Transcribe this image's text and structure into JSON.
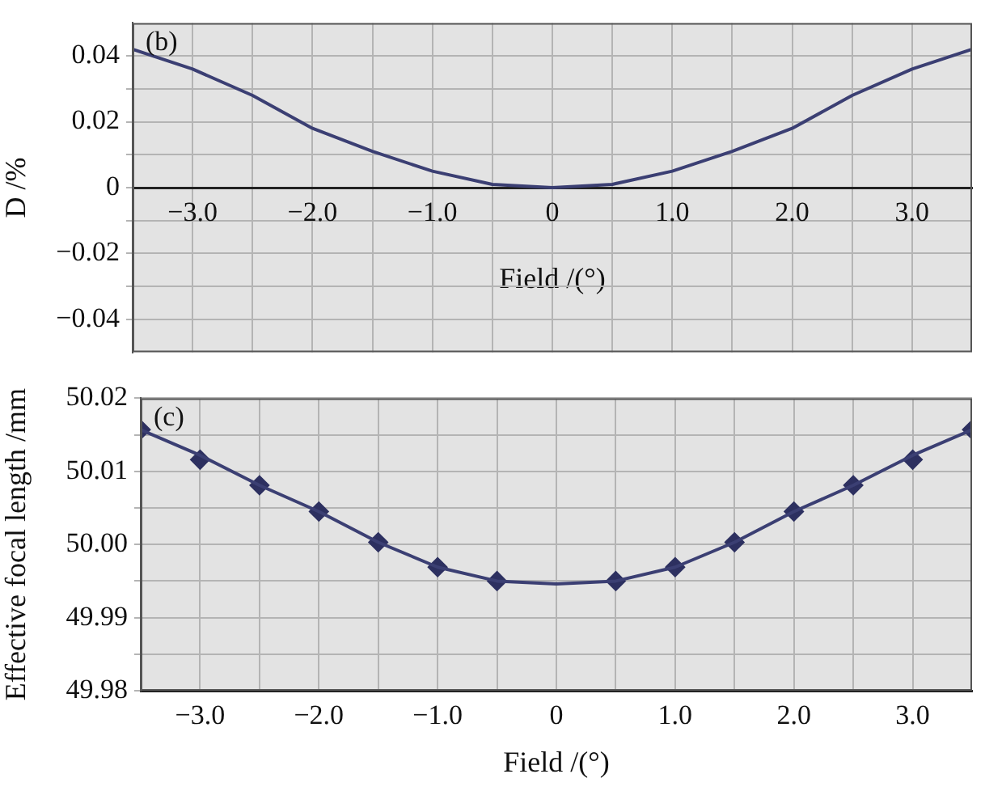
{
  "chart_data": [
    {
      "type": "line",
      "xlabel": "Field /(°)",
      "ylabel": "D /%",
      "annotations": [
        "(b)"
      ],
      "grid": true,
      "marker": "none",
      "x": [
        -3.5,
        -3,
        -2.5,
        -2,
        -1.5,
        -1,
        -0.5,
        0,
        0.5,
        1,
        1.5,
        2,
        2.5,
        3,
        3.5
      ],
      "series": [
        {
          "color": "#3b3f73",
          "values": [
            0.042,
            0.036,
            0.028,
            0.018,
            0.011,
            0.005,
            0.001,
            0,
            0.001,
            0.005,
            0.011,
            0.018,
            0.028,
            0.036,
            0.042
          ]
        }
      ],
      "xlim": [
        -3.5,
        3.5
      ],
      "ylim": [
        -0.05,
        0.05
      ],
      "xticks": [
        {
          "value": -3,
          "label": "−3.0"
        },
        {
          "value": -2.5,
          "label": null
        },
        {
          "value": -2,
          "label": "−2.0"
        },
        {
          "value": -1.5,
          "label": null
        },
        {
          "value": -1,
          "label": "−1.0"
        },
        {
          "value": -0.5,
          "label": null
        },
        0,
        {
          "value": 0.5,
          "label": null
        },
        {
          "value": 1,
          "label": "1.0"
        },
        {
          "value": 1.5,
          "label": null
        },
        {
          "value": 2,
          "label": "2.0"
        },
        {
          "value": 2.5,
          "label": null
        },
        {
          "value": 3,
          "label": "3.0"
        }
      ],
      "yticks": [
        {
          "value": -0.04,
          "label": "−0.04"
        },
        {
          "value": -0.03,
          "label": null
        },
        {
          "value": -0.02,
          "label": "−0.02"
        },
        {
          "value": -0.01,
          "label": null
        },
        0,
        {
          "value": 0.01,
          "label": null
        },
        0.02,
        {
          "value": 0.03,
          "label": null
        },
        0.04
      ]
    },
    {
      "type": "line",
      "xlabel": "Field /(°)",
      "ylabel": "Effective focal length /mm",
      "annotations": [
        "(c)"
      ],
      "grid": true,
      "series": [
        {
          "color": "#3b3f73",
          "marker": "none",
          "x": [
            -3.5,
            -3,
            -2.5,
            -2,
            -1.5,
            -1,
            -0.5,
            0,
            0.5,
            1,
            1.5,
            2,
            2.5,
            3,
            3.5
          ],
          "values": [
            50.0157,
            50.0122,
            50.0081,
            50.0045,
            50.0003,
            49.9969,
            49.995,
            49.9946,
            49.995,
            49.9969,
            50.0003,
            50.0045,
            50.0081,
            50.0122,
            50.0157
          ]
        },
        {
          "type": "scatter",
          "color": "#2d3060",
          "marker": "diamond",
          "x": [
            -3.5,
            -3,
            -2.5,
            -2,
            -1.5,
            -1,
            -0.5,
            0.5,
            1,
            1.5,
            2,
            2.5,
            3,
            3.5
          ],
          "values": [
            50.0157,
            50.0116,
            50.0081,
            50.0045,
            50.0003,
            49.9969,
            49.995,
            49.995,
            49.9969,
            50.0003,
            50.0045,
            50.0081,
            50.0116,
            50.0157
          ]
        }
      ],
      "xlim": [
        -3.5,
        3.5
      ],
      "ylim": [
        49.98,
        50.02
      ],
      "xticks": [
        {
          "value": -3,
          "label": "−3.0"
        },
        {
          "value": -2.5,
          "label": null
        },
        {
          "value": -2,
          "label": "−2.0"
        },
        {
          "value": -1.5,
          "label": null
        },
        {
          "value": -1,
          "label": "−1.0"
        },
        {
          "value": -0.5,
          "label": null
        },
        0,
        {
          "value": 0.5,
          "label": null
        },
        {
          "value": 1,
          "label": "1.0"
        },
        {
          "value": 1.5,
          "label": null
        },
        {
          "value": 2,
          "label": "2.0"
        },
        {
          "value": 2.5,
          "label": null
        },
        {
          "value": 3,
          "label": "3.0"
        }
      ],
      "yticks": [
        49.98,
        {
          "value": 49.985,
          "label": null
        },
        49.99,
        {
          "value": 49.995,
          "label": null
        },
        {
          "value": 50,
          "label": "50.00"
        },
        {
          "value": 50.005,
          "label": null
        },
        50.01,
        {
          "value": 50.015,
          "label": null
        },
        50.02
      ]
    }
  ]
}
